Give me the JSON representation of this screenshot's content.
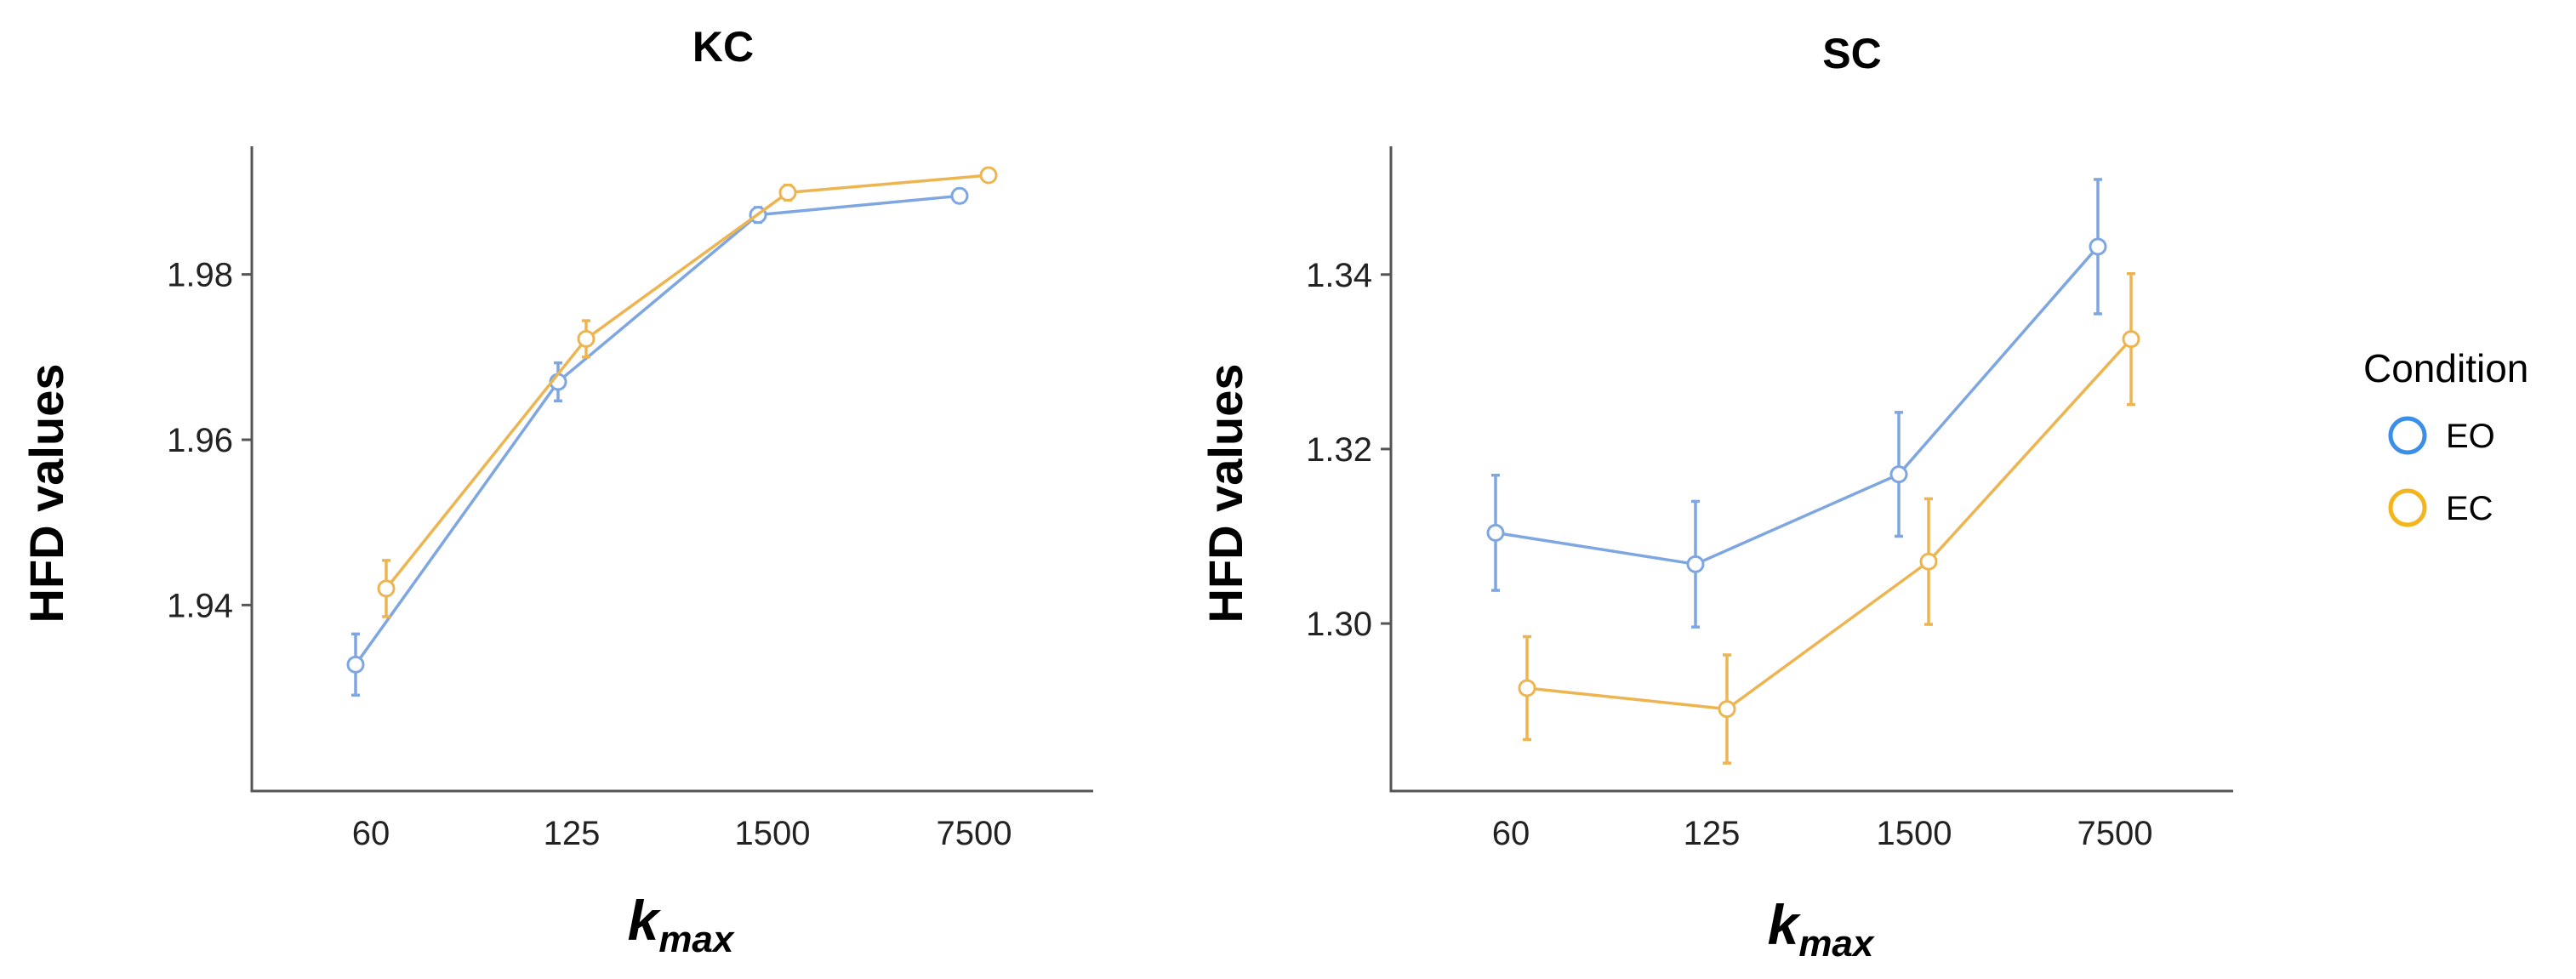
{
  "legend": {
    "title": "Condition",
    "entries": [
      {
        "name": "EO",
        "color": "#7ea6e0"
      },
      {
        "name": "EC",
        "color": "#edb551"
      }
    ],
    "legend_marker_colors": {
      "EO": "#3b8fe8",
      "EC": "#f2b51e"
    },
    "placement": "right"
  },
  "chart_data": [
    {
      "type": "line",
      "title": "KC",
      "ylabel": "HFD values",
      "xlabel": {
        "main": "k",
        "sub": "max"
      },
      "categories": [
        "60",
        "125",
        "1500",
        "7500"
      ],
      "yticks": [
        "1.94",
        "1.96",
        "1.98"
      ],
      "ylim": [
        1.9175,
        1.9955
      ],
      "error_bars": true,
      "grid": false,
      "series": [
        {
          "name": "EO",
          "values": [
            1.9328,
            1.967,
            1.9872,
            1.9895
          ],
          "errors": [
            0.0037,
            0.0023,
            0.0009,
            0.0008
          ]
        },
        {
          "name": "EC",
          "values": [
            1.942,
            1.9722,
            1.9899,
            1.992
          ],
          "errors": [
            0.0034,
            0.0022,
            0.0009,
            0.0007
          ]
        }
      ]
    },
    {
      "type": "line",
      "title": "SC",
      "ylabel": "HFD values",
      "xlabel": {
        "main": "k",
        "sub": "max"
      },
      "categories": [
        "60",
        "125",
        "1500",
        "7500"
      ],
      "yticks": [
        "1.30",
        "1.32",
        "1.34"
      ],
      "ylim": [
        1.2808,
        1.3547
      ],
      "error_bars": true,
      "grid": false,
      "series": [
        {
          "name": "EO",
          "values": [
            1.3104,
            1.3068,
            1.3171,
            1.3432
          ],
          "errors": [
            0.0066,
            0.0072,
            0.0071,
            0.0077
          ]
        },
        {
          "name": "EC",
          "values": [
            1.2926,
            1.2902,
            1.3071,
            1.3326
          ],
          "errors": [
            0.0059,
            0.0062,
            0.0072,
            0.0075
          ]
        }
      ]
    }
  ]
}
